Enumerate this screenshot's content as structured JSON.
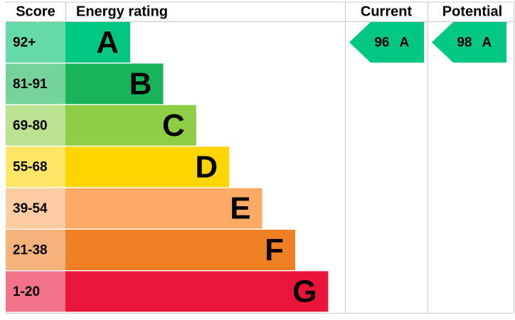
{
  "header": {
    "score": "Score",
    "rating": "Energy rating",
    "current": "Current",
    "potential": "Potential"
  },
  "bands": [
    {
      "score": "92+",
      "letter": "A",
      "color": "#00c781",
      "score_color": "#66d9a9"
    },
    {
      "score": "81-91",
      "letter": "B",
      "color": "#19b459",
      "score_color": "#75d29b"
    },
    {
      "score": "69-80",
      "letter": "C",
      "color": "#8dce46",
      "score_color": "#bbe290"
    },
    {
      "score": "55-68",
      "letter": "D",
      "color": "#ffd500",
      "score_color": "#ffe666"
    },
    {
      "score": "39-54",
      "letter": "E",
      "color": "#fcaa65",
      "score_color": "#fdcca3"
    },
    {
      "score": "21-38",
      "letter": "F",
      "color": "#ef8023",
      "score_color": "#f5b37b"
    },
    {
      "score": "1-20",
      "letter": "G",
      "color": "#e9153b",
      "score_color": "#f17389"
    }
  ],
  "current": {
    "value": 96,
    "letter": "A"
  },
  "potential": {
    "value": 98,
    "letter": "A"
  }
}
